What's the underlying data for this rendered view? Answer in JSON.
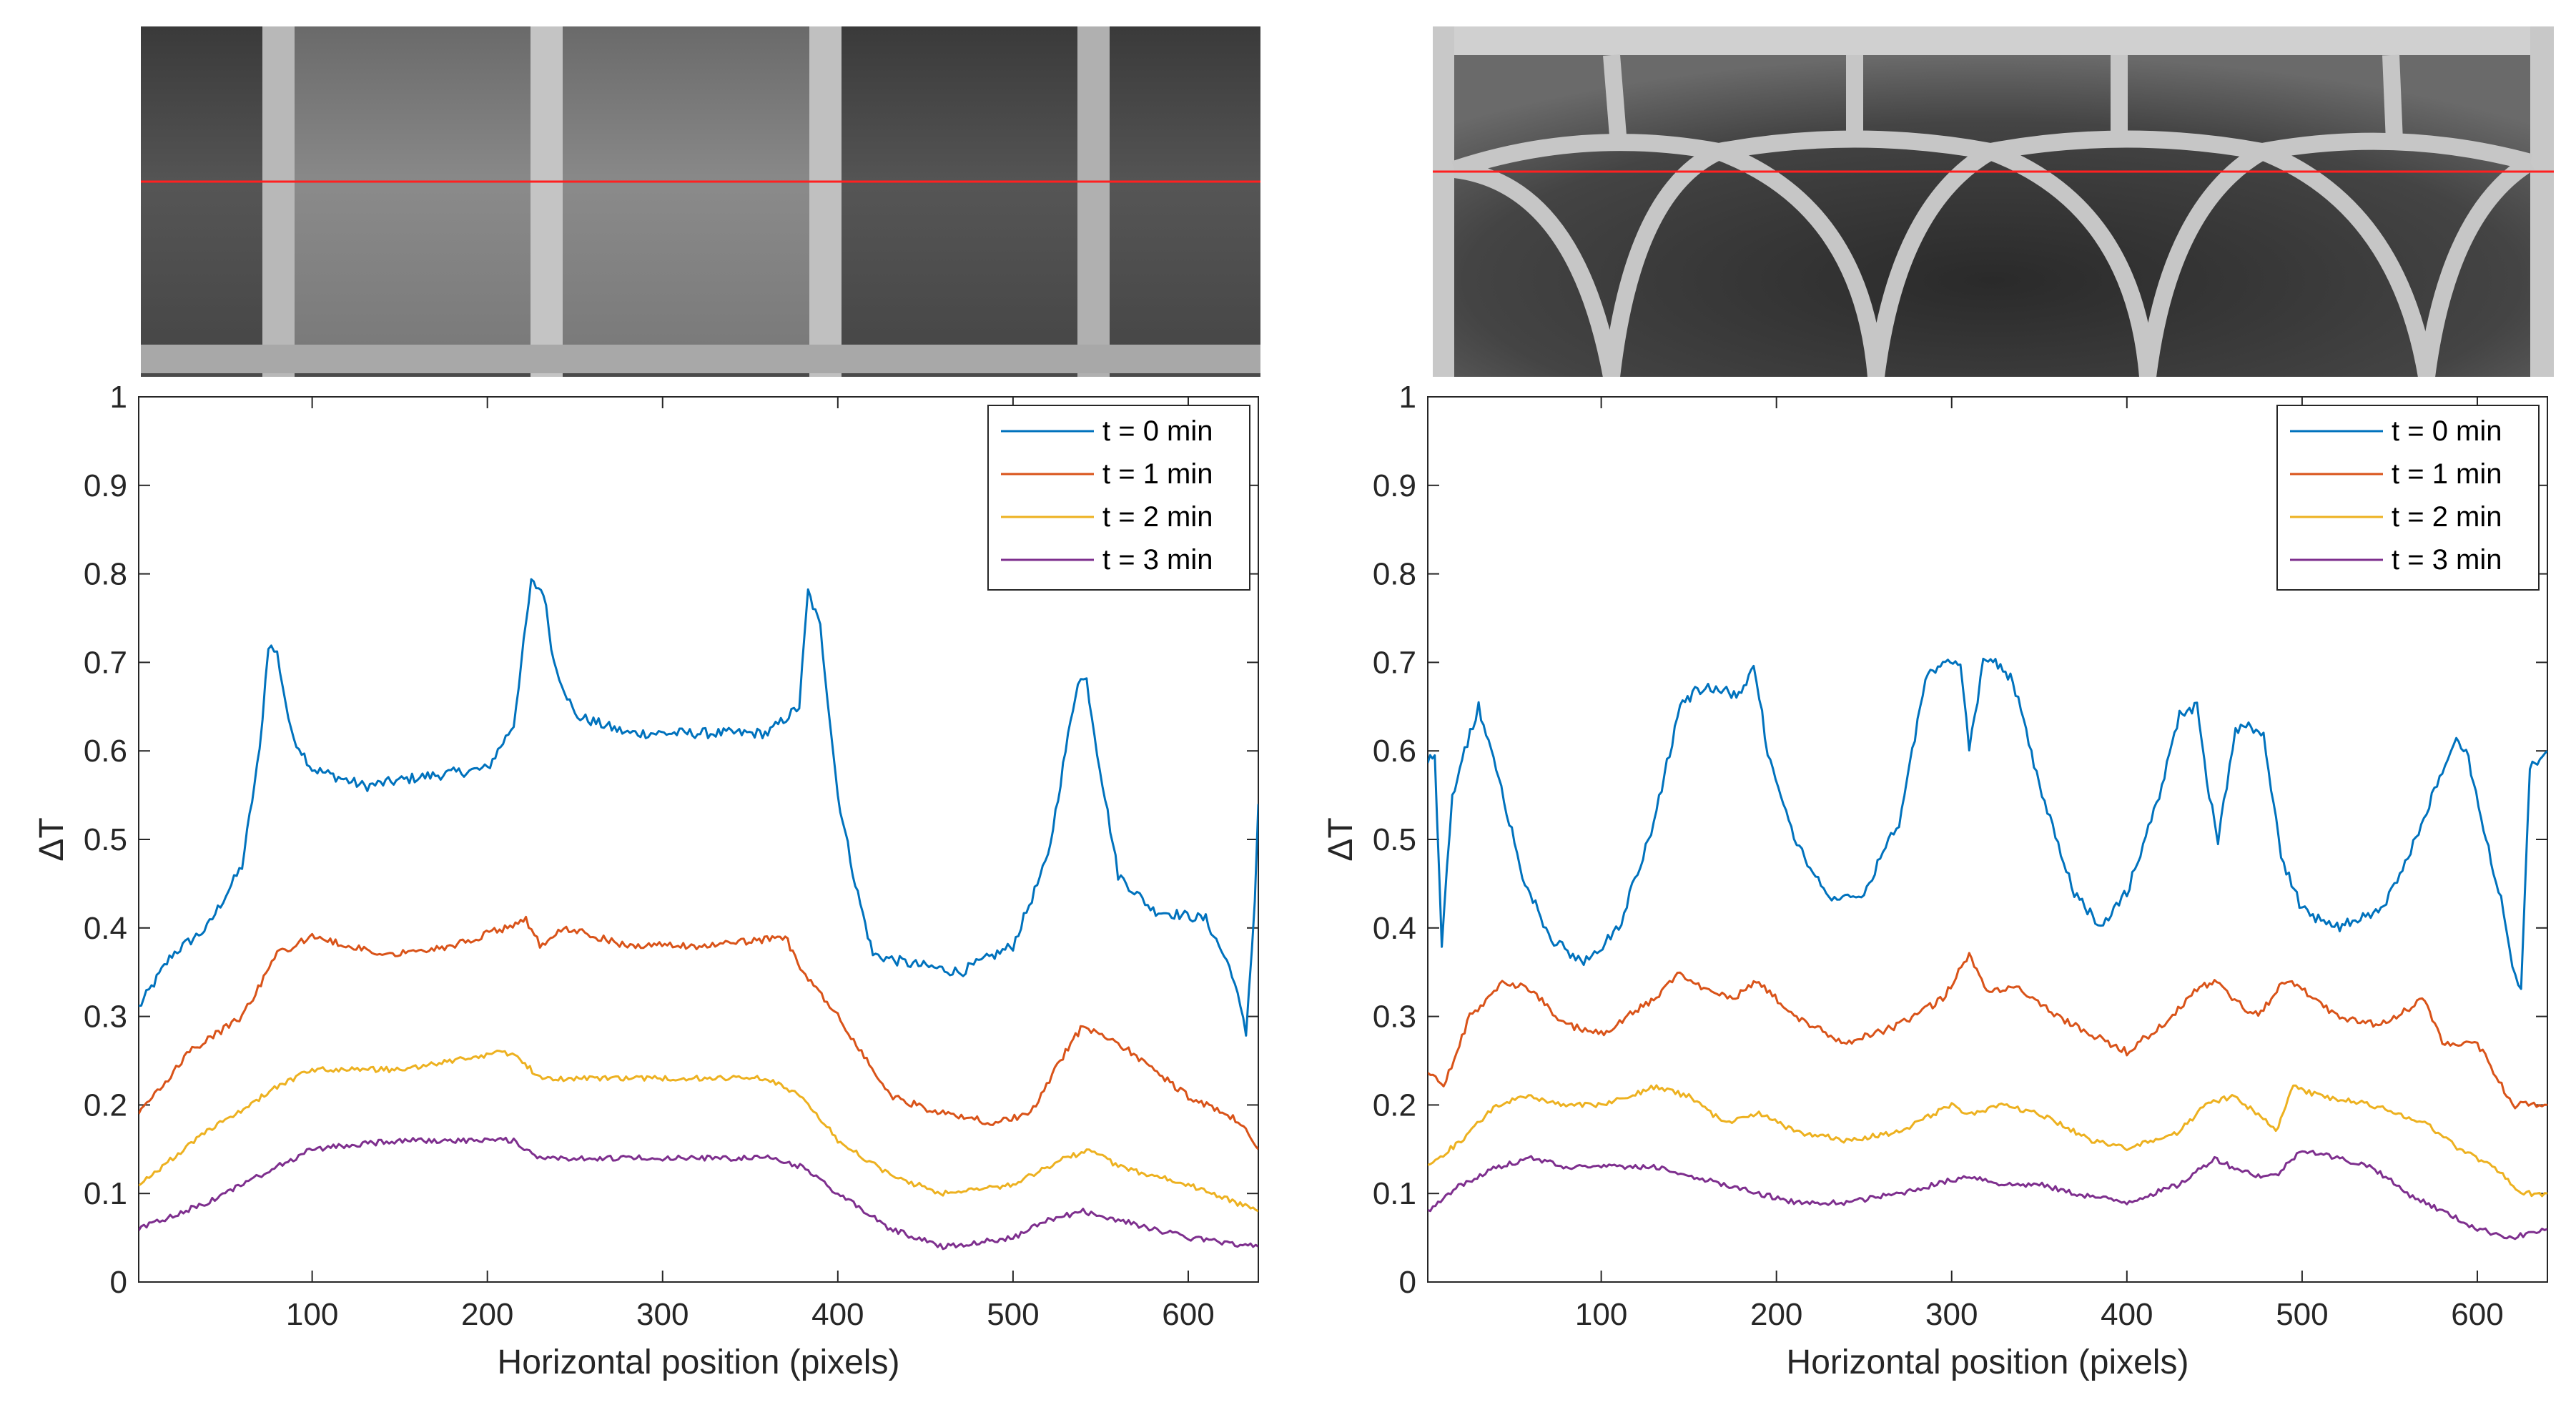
{
  "thumbnails": [
    {
      "pattern": "rectangular-grid"
    },
    {
      "pattern": "arched-grid"
    }
  ],
  "chart_data": [
    {
      "type": "line",
      "xlabel": "Horizontal position (pixels)",
      "ylabel": "ΔT",
      "xlim": [
        1,
        640
      ],
      "ylim": [
        0,
        1
      ],
      "xticks": [
        100,
        200,
        300,
        400,
        500,
        600
      ],
      "yticks": [
        0,
        0.1,
        0.2,
        0.3,
        0.4,
        0.5,
        0.6,
        0.7,
        0.8,
        0.9,
        1
      ],
      "legend_position": "top-right",
      "grid": false,
      "series": [
        {
          "name": "t = 0 min",
          "color": "#0072BD",
          "x": [
            1,
            20,
            40,
            60,
            70,
            75,
            80,
            88,
            100,
            130,
            160,
            200,
            215,
            225,
            232,
            238,
            250,
            280,
            320,
            360,
            378,
            383,
            390,
            400,
            410,
            420,
            440,
            470,
            500,
            520,
            530,
            537,
            542,
            548,
            560,
            580,
            610,
            625,
            633,
            638,
            640
          ],
          "y": [
            0.31,
            0.37,
            0.4,
            0.47,
            0.6,
            0.72,
            0.71,
            0.62,
            0.58,
            0.56,
            0.57,
            0.58,
            0.63,
            0.79,
            0.78,
            0.7,
            0.64,
            0.62,
            0.62,
            0.62,
            0.65,
            0.78,
            0.74,
            0.55,
            0.45,
            0.37,
            0.36,
            0.35,
            0.38,
            0.48,
            0.6,
            0.68,
            0.68,
            0.6,
            0.46,
            0.42,
            0.41,
            0.35,
            0.28,
            0.43,
            0.54
          ]
        },
        {
          "name": "t = 1 min",
          "color": "#D95319",
          "x": [
            1,
            30,
            60,
            80,
            100,
            140,
            180,
            210,
            222,
            230,
            245,
            280,
            330,
            370,
            380,
            400,
            430,
            460,
            490,
            510,
            530,
            540,
            560,
            600,
            630,
            640
          ],
          "y": [
            0.19,
            0.26,
            0.3,
            0.37,
            0.39,
            0.37,
            0.38,
            0.4,
            0.41,
            0.38,
            0.4,
            0.38,
            0.38,
            0.39,
            0.35,
            0.3,
            0.21,
            0.19,
            0.18,
            0.19,
            0.26,
            0.29,
            0.27,
            0.21,
            0.18,
            0.15
          ]
        },
        {
          "name": "t = 2 min",
          "color": "#EDB120",
          "x": [
            1,
            40,
            80,
            100,
            150,
            210,
            220,
            230,
            300,
            360,
            380,
            400,
            430,
            460,
            500,
            530,
            545,
            560,
            600,
            640
          ],
          "y": [
            0.11,
            0.17,
            0.22,
            0.24,
            0.24,
            0.26,
            0.25,
            0.23,
            0.23,
            0.23,
            0.21,
            0.16,
            0.12,
            0.1,
            0.11,
            0.14,
            0.15,
            0.13,
            0.11,
            0.08
          ]
        },
        {
          "name": "t = 3 min",
          "color": "#7E2F8E",
          "x": [
            1,
            40,
            80,
            100,
            150,
            200,
            215,
            230,
            300,
            360,
            380,
            400,
            430,
            460,
            500,
            520,
            540,
            560,
            600,
            640
          ],
          "y": [
            0.06,
            0.09,
            0.13,
            0.15,
            0.16,
            0.16,
            0.16,
            0.14,
            0.14,
            0.14,
            0.13,
            0.1,
            0.06,
            0.04,
            0.05,
            0.07,
            0.08,
            0.07,
            0.05,
            0.04
          ]
        }
      ]
    },
    {
      "type": "line",
      "xlabel": "Horizontal position (pixels)",
      "ylabel": "ΔT",
      "xlim": [
        1,
        640
      ],
      "ylim": [
        0,
        1
      ],
      "xticks": [
        100,
        200,
        300,
        400,
        500,
        600
      ],
      "yticks": [
        0,
        0.1,
        0.2,
        0.3,
        0.4,
        0.5,
        0.6,
        0.7,
        0.8,
        0.9,
        1
      ],
      "legend_position": "top-right",
      "grid": false,
      "series": [
        {
          "name": "t = 0 min",
          "color": "#0072BD",
          "x": [
            1,
            5,
            9,
            15,
            22,
            30,
            40,
            55,
            70,
            90,
            110,
            130,
            145,
            155,
            170,
            180,
            187,
            195,
            210,
            230,
            250,
            270,
            285,
            295,
            305,
            310,
            318,
            325,
            335,
            350,
            370,
            385,
            400,
            420,
            430,
            440,
            447,
            452,
            457,
            462,
            468,
            478,
            488,
            500,
            520,
            545,
            565,
            580,
            588,
            595,
            605,
            615,
            620,
            625,
            630,
            640
          ],
          "y": [
            0.59,
            0.6,
            0.38,
            0.55,
            0.6,
            0.65,
            0.58,
            0.46,
            0.39,
            0.36,
            0.4,
            0.52,
            0.65,
            0.67,
            0.67,
            0.66,
            0.7,
            0.6,
            0.5,
            0.43,
            0.44,
            0.52,
            0.68,
            0.7,
            0.7,
            0.6,
            0.7,
            0.7,
            0.68,
            0.56,
            0.44,
            0.4,
            0.44,
            0.56,
            0.64,
            0.65,
            0.55,
            0.5,
            0.56,
            0.62,
            0.63,
            0.62,
            0.48,
            0.42,
            0.4,
            0.42,
            0.5,
            0.58,
            0.62,
            0.59,
            0.5,
            0.42,
            0.36,
            0.33,
            0.58,
            0.6
          ]
        },
        {
          "name": "t = 1 min",
          "color": "#D95319",
          "x": [
            1,
            10,
            25,
            45,
            60,
            80,
            100,
            130,
            145,
            160,
            175,
            190,
            210,
            240,
            270,
            295,
            310,
            320,
            340,
            360,
            380,
            400,
            420,
            440,
            450,
            460,
            475,
            490,
            500,
            520,
            545,
            570,
            580,
            600,
            620,
            640
          ],
          "y": [
            0.24,
            0.22,
            0.3,
            0.34,
            0.33,
            0.29,
            0.28,
            0.32,
            0.35,
            0.33,
            0.32,
            0.34,
            0.3,
            0.27,
            0.29,
            0.32,
            0.37,
            0.33,
            0.33,
            0.3,
            0.28,
            0.26,
            0.29,
            0.33,
            0.34,
            0.32,
            0.3,
            0.34,
            0.33,
            0.3,
            0.29,
            0.32,
            0.27,
            0.27,
            0.2,
            0.2
          ]
        },
        {
          "name": "t = 2 min",
          "color": "#EDB120",
          "x": [
            1,
            20,
            40,
            60,
            80,
            100,
            130,
            150,
            170,
            190,
            210,
            240,
            270,
            300,
            310,
            330,
            350,
            380,
            400,
            430,
            445,
            460,
            475,
            485,
            495,
            510,
            540,
            570,
            590,
            610,
            625,
            640
          ],
          "y": [
            0.13,
            0.16,
            0.2,
            0.21,
            0.2,
            0.2,
            0.22,
            0.21,
            0.18,
            0.19,
            0.17,
            0.16,
            0.17,
            0.2,
            0.19,
            0.2,
            0.19,
            0.16,
            0.15,
            0.17,
            0.2,
            0.21,
            0.19,
            0.17,
            0.22,
            0.21,
            0.2,
            0.18,
            0.15,
            0.13,
            0.1,
            0.1
          ]
        },
        {
          "name": "t = 3 min",
          "color": "#7E2F8E",
          "x": [
            1,
            20,
            40,
            60,
            80,
            100,
            130,
            150,
            170,
            190,
            210,
            240,
            270,
            290,
            310,
            330,
            350,
            370,
            400,
            430,
            450,
            460,
            475,
            485,
            500,
            520,
            540,
            560,
            580,
            600,
            620,
            640
          ],
          "y": [
            0.08,
            0.11,
            0.13,
            0.14,
            0.13,
            0.13,
            0.13,
            0.12,
            0.11,
            0.1,
            0.09,
            0.09,
            0.1,
            0.11,
            0.12,
            0.11,
            0.11,
            0.1,
            0.09,
            0.11,
            0.14,
            0.13,
            0.12,
            0.12,
            0.15,
            0.14,
            0.13,
            0.1,
            0.08,
            0.06,
            0.05,
            0.06
          ]
        }
      ]
    }
  ]
}
